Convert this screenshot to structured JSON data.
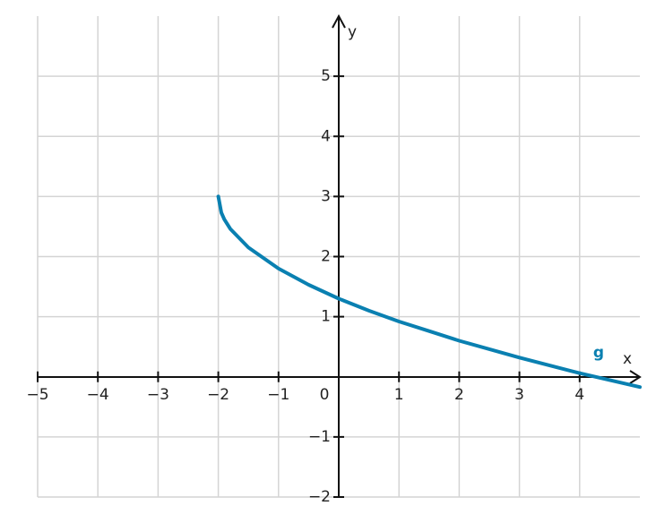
{
  "chart_data": {
    "type": "line",
    "x_label": "x",
    "y_label": "y",
    "series": [
      {
        "name": "g",
        "color": "#0a80b1",
        "x": [
          -2,
          -1.95,
          -1.9,
          -1.8,
          -1.5,
          -1,
          -0.5,
          0,
          0.5,
          1,
          1.5,
          2,
          3,
          4,
          5
        ],
        "values": [
          3,
          2.73,
          2.62,
          2.46,
          2.15,
          1.8,
          1.53,
          1.3,
          1.1,
          0.92,
          0.76,
          0.6,
          0.32,
          0.06,
          -0.17
        ]
      }
    ],
    "xlim": [
      -5,
      5
    ],
    "ylim": [
      -2,
      6
    ],
    "xticks": [
      {
        "value": -5,
        "label": "−5"
      },
      {
        "value": -4,
        "label": "−4"
      },
      {
        "value": -3,
        "label": "−3"
      },
      {
        "value": -2,
        "label": "−2"
      },
      {
        "value": -1,
        "label": "−1"
      },
      0,
      1,
      2,
      3,
      4
    ],
    "yticks": [
      {
        "value": -2,
        "label": "−2"
      },
      {
        "value": -1,
        "label": "−1"
      },
      1,
      2,
      3,
      4,
      5
    ],
    "grid": true
  }
}
